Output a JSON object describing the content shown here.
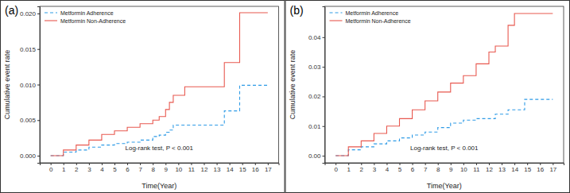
{
  "chart_data": [
    {
      "type": "step",
      "title": "(a)",
      "x_label": "Time(Year)",
      "y_label": "Cumulative event rate",
      "annotation": "Log-rank test, P < 0.001",
      "legend": "top-left",
      "x": [
        0,
        1,
        2,
        3,
        4,
        5,
        6,
        7,
        8,
        8.5,
        9,
        9.3,
        9.6,
        10.5,
        13.6,
        14.8,
        17
      ],
      "series": [
        {
          "name": "Metformin Adherence",
          "color": "#2E9BE6",
          "line_style": "dashed",
          "values": [
            0,
            0.0005,
            0.0008,
            0.0012,
            0.0015,
            0.0017,
            0.0019,
            0.0022,
            0.0027,
            0.0029,
            0.0033,
            0.0036,
            0.0043,
            0.0043,
            0.0063,
            0.0099,
            0.0099
          ]
        },
        {
          "name": "Metformin Non-Adherence",
          "color": "#E8584F",
          "line_style": "solid",
          "values": [
            0,
            0.0008,
            0.0015,
            0.0022,
            0.003,
            0.0035,
            0.004,
            0.0045,
            0.005,
            0.0055,
            0.0065,
            0.0075,
            0.0085,
            0.0097,
            0.0131,
            0.0201,
            0.0201
          ]
        }
      ],
      "xlim": [
        -0.85,
        17.85
      ],
      "ylim": [
        -0.001,
        0.021
      ],
      "xticks": [
        0,
        1,
        2,
        3,
        4,
        5,
        6,
        7,
        8,
        9,
        10,
        11,
        12,
        13,
        14,
        15,
        16,
        17
      ],
      "yticks": [
        {
          "value": 0,
          "label": "0.000"
        },
        {
          "value": 0.005,
          "label": "0.005"
        },
        {
          "value": 0.01,
          "label": "0.010"
        },
        {
          "value": 0.015,
          "label": "0.015"
        },
        {
          "value": 0.02,
          "label": "0.020"
        }
      ]
    },
    {
      "type": "step",
      "title": "(b)",
      "x_label": "Time(Year)",
      "y_label": "Cumulative event rate",
      "annotation": "Log-rank test, P < 0.001",
      "legend": "top-left",
      "x": [
        0,
        1,
        2,
        3,
        4,
        5,
        6,
        7,
        8,
        9,
        10,
        11,
        12,
        12.5,
        13,
        13.5,
        14,
        14.8,
        17
      ],
      "series": [
        {
          "name": "Metformin Adherence",
          "color": "#2E9BE6",
          "line_style": "dashed",
          "values": [
            0,
            0.002,
            0.003,
            0.004,
            0.005,
            0.006,
            0.007,
            0.008,
            0.0095,
            0.011,
            0.012,
            0.0125,
            0.0125,
            0.014,
            0.014,
            0.0155,
            0.0155,
            0.019,
            0.019
          ]
        },
        {
          "name": "Metformin Non-Adherence",
          "color": "#E8584F",
          "line_style": "solid",
          "values": [
            0,
            0.003,
            0.005,
            0.0075,
            0.01,
            0.0125,
            0.0155,
            0.0185,
            0.0215,
            0.0245,
            0.027,
            0.031,
            0.035,
            0.037,
            0.037,
            0.044,
            0.048,
            0.048,
            0.048
          ]
        }
      ],
      "xlim": [
        -0.85,
        17.85
      ],
      "ylim": [
        -0.0024,
        0.0504
      ],
      "xticks": [
        0,
        1,
        2,
        3,
        4,
        5,
        6,
        7,
        8,
        9,
        10,
        11,
        12,
        13,
        14,
        15,
        16,
        17
      ],
      "yticks": [
        {
          "value": 0,
          "label": "0.00"
        },
        {
          "value": 0.01,
          "label": "0.01"
        },
        {
          "value": 0.02,
          "label": "0.02"
        },
        {
          "value": 0.03,
          "label": "0.03"
        },
        {
          "value": 0.04,
          "label": "0.04"
        }
      ]
    }
  ]
}
